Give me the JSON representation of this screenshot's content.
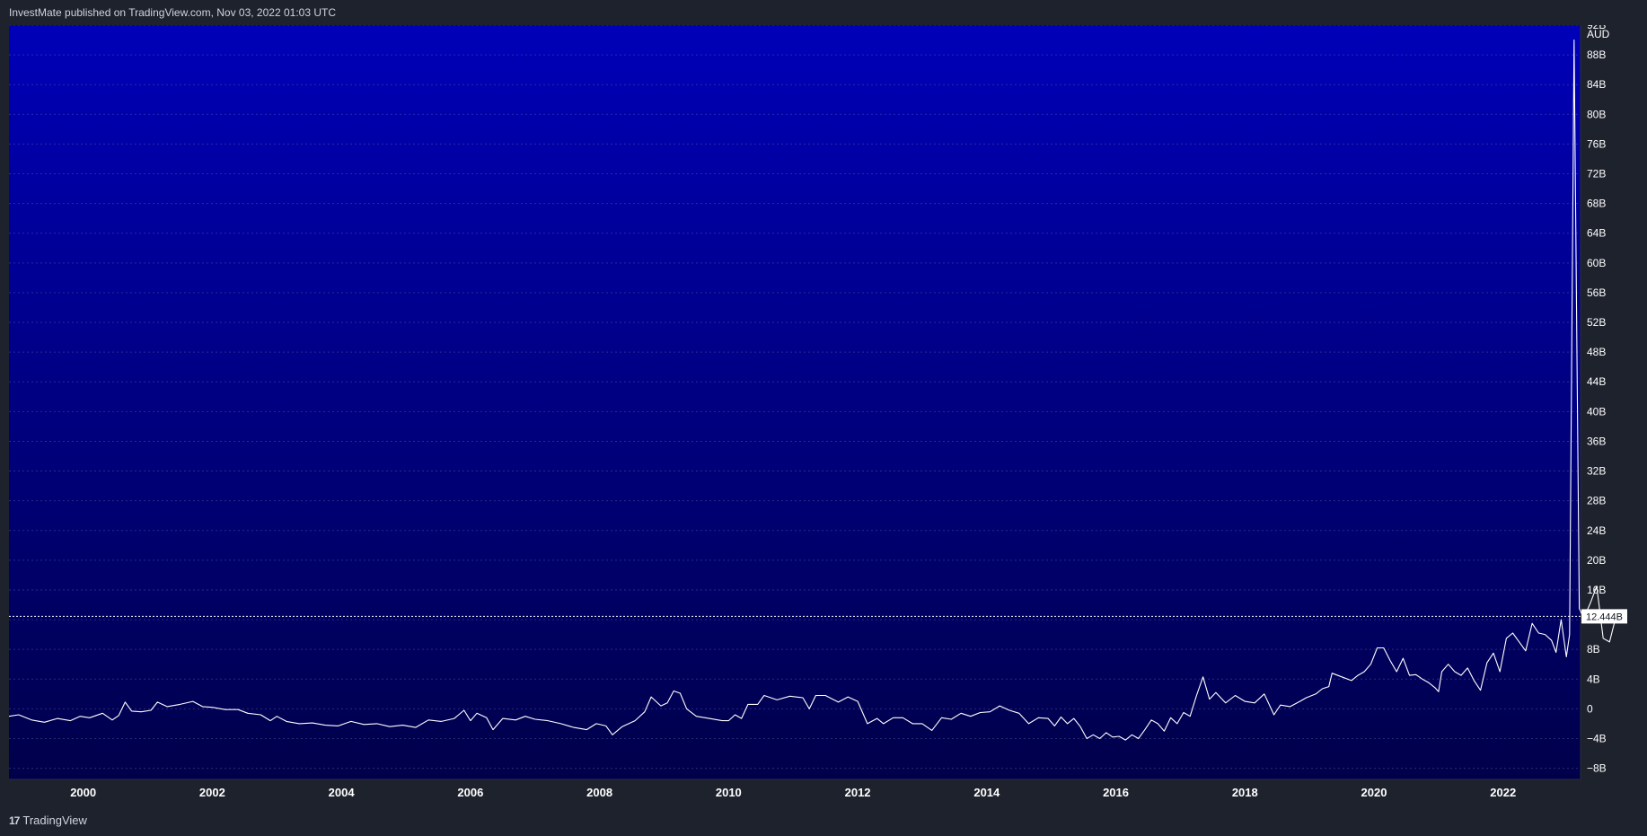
{
  "header": {
    "text": "InvestMate published on TradingView.com, Nov 03, 2022 01:03 UTC"
  },
  "footer": {
    "logo_glyph": "17",
    "brand": "TradingView"
  },
  "colors": {
    "bg_top": "#0000b8",
    "bg_bottom": "#00004a",
    "line": "#ffffff",
    "page_bg": "#1e222d"
  },
  "chart_data": {
    "type": "line",
    "currency_label": "AUD",
    "last_value_label": "12.444B",
    "last_value": 12.444,
    "y_unit": "B",
    "ylim": [
      -9.5,
      92
    ],
    "xlim": [
      1998.85,
      2023.2
    ],
    "grid": true,
    "y_ticks": [
      {
        "value": 92,
        "label": "92B"
      },
      {
        "value": 88,
        "label": "88B"
      },
      {
        "value": 84,
        "label": "84B"
      },
      {
        "value": 80,
        "label": "80B"
      },
      {
        "value": 76,
        "label": "76B"
      },
      {
        "value": 72,
        "label": "72B"
      },
      {
        "value": 68,
        "label": "68B"
      },
      {
        "value": 64,
        "label": "64B"
      },
      {
        "value": 60,
        "label": "60B"
      },
      {
        "value": 56,
        "label": "56B"
      },
      {
        "value": 52,
        "label": "52B"
      },
      {
        "value": 48,
        "label": "48B"
      },
      {
        "value": 44,
        "label": "44B"
      },
      {
        "value": 40,
        "label": "40B"
      },
      {
        "value": 36,
        "label": "36B"
      },
      {
        "value": 32,
        "label": "32B"
      },
      {
        "value": 28,
        "label": "28B"
      },
      {
        "value": 24,
        "label": "24B"
      },
      {
        "value": 20,
        "label": "20B"
      },
      {
        "value": 16,
        "label": "16B"
      },
      {
        "value": 12,
        "label": "12B"
      },
      {
        "value": 8,
        "label": "8B"
      },
      {
        "value": 4,
        "label": "4B"
      },
      {
        "value": 0,
        "label": "0"
      },
      {
        "value": -4,
        "label": "−4B"
      },
      {
        "value": -8,
        "label": "−8B"
      }
    ],
    "x_ticks": [
      {
        "value": 2000,
        "label": "2000"
      },
      {
        "value": 2002,
        "label": "2002"
      },
      {
        "value": 2004,
        "label": "2004"
      },
      {
        "value": 2006,
        "label": "2006"
      },
      {
        "value": 2008,
        "label": "2008"
      },
      {
        "value": 2010,
        "label": "2010"
      },
      {
        "value": 2012,
        "label": "2012"
      },
      {
        "value": 2014,
        "label": "2014"
      },
      {
        "value": 2016,
        "label": "2016"
      },
      {
        "value": 2018,
        "label": "2018"
      },
      {
        "value": 2020,
        "label": "2020"
      },
      {
        "value": 2022,
        "label": "2022"
      }
    ],
    "series": [
      {
        "points": [
          [
            1998.85,
            -1.0
          ],
          [
            1999.0,
            -0.8
          ],
          [
            1999.2,
            -1.5
          ],
          [
            1999.4,
            -1.8
          ],
          [
            1999.6,
            -1.3
          ],
          [
            1999.8,
            -1.6
          ],
          [
            1999.95,
            -1.0
          ],
          [
            2000.1,
            -1.2
          ],
          [
            2000.3,
            -0.6
          ],
          [
            2000.45,
            -1.5
          ],
          [
            2000.55,
            -0.9
          ],
          [
            2000.65,
            0.9
          ],
          [
            2000.75,
            -0.3
          ],
          [
            2000.9,
            -0.4
          ],
          [
            2001.05,
            -0.2
          ],
          [
            2001.15,
            0.9
          ],
          [
            2001.3,
            0.3
          ],
          [
            2001.5,
            0.6
          ],
          [
            2001.7,
            1.0
          ],
          [
            2001.85,
            0.3
          ],
          [
            2002.0,
            0.2
          ],
          [
            2002.2,
            -0.1
          ],
          [
            2002.4,
            -0.1
          ],
          [
            2002.55,
            -0.6
          ],
          [
            2002.75,
            -0.8
          ],
          [
            2002.9,
            -1.6
          ],
          [
            2003.0,
            -1.0
          ],
          [
            2003.15,
            -1.7
          ],
          [
            2003.35,
            -2.0
          ],
          [
            2003.55,
            -1.9
          ],
          [
            2003.75,
            -2.2
          ],
          [
            2003.95,
            -2.3
          ],
          [
            2004.15,
            -1.7
          ],
          [
            2004.35,
            -2.1
          ],
          [
            2004.55,
            -2.0
          ],
          [
            2004.75,
            -2.4
          ],
          [
            2004.95,
            -2.2
          ],
          [
            2005.15,
            -2.5
          ],
          [
            2005.35,
            -1.5
          ],
          [
            2005.55,
            -1.7
          ],
          [
            2005.75,
            -1.3
          ],
          [
            2005.9,
            -0.2
          ],
          [
            2006.0,
            -1.6
          ],
          [
            2006.1,
            -0.6
          ],
          [
            2006.25,
            -1.2
          ],
          [
            2006.35,
            -2.8
          ],
          [
            2006.5,
            -1.3
          ],
          [
            2006.7,
            -1.5
          ],
          [
            2006.85,
            -1.0
          ],
          [
            2007.0,
            -1.4
          ],
          [
            2007.2,
            -1.6
          ],
          [
            2007.4,
            -2.0
          ],
          [
            2007.6,
            -2.5
          ],
          [
            2007.8,
            -2.8
          ],
          [
            2007.95,
            -2.0
          ],
          [
            2008.1,
            -2.3
          ],
          [
            2008.2,
            -3.5
          ],
          [
            2008.35,
            -2.4
          ],
          [
            2008.55,
            -1.6
          ],
          [
            2008.7,
            -0.4
          ],
          [
            2008.8,
            1.6
          ],
          [
            2008.95,
            0.4
          ],
          [
            2009.05,
            0.8
          ],
          [
            2009.15,
            2.4
          ],
          [
            2009.25,
            2.1
          ],
          [
            2009.35,
            0.0
          ],
          [
            2009.5,
            -1.0
          ],
          [
            2009.7,
            -1.3
          ],
          [
            2009.9,
            -1.6
          ],
          [
            2010.0,
            -1.6
          ],
          [
            2010.1,
            -0.8
          ],
          [
            2010.2,
            -1.3
          ],
          [
            2010.3,
            0.6
          ],
          [
            2010.45,
            0.6
          ],
          [
            2010.55,
            1.8
          ],
          [
            2010.75,
            1.2
          ],
          [
            2010.95,
            1.7
          ],
          [
            2011.15,
            1.5
          ],
          [
            2011.25,
            0.0
          ],
          [
            2011.35,
            1.8
          ],
          [
            2011.5,
            1.8
          ],
          [
            2011.7,
            0.9
          ],
          [
            2011.85,
            1.6
          ],
          [
            2012.0,
            1.0
          ],
          [
            2012.15,
            -2.0
          ],
          [
            2012.3,
            -1.3
          ],
          [
            2012.4,
            -2.0
          ],
          [
            2012.55,
            -1.2
          ],
          [
            2012.7,
            -1.2
          ],
          [
            2012.85,
            -2.0
          ],
          [
            2013.0,
            -2.0
          ],
          [
            2013.15,
            -2.9
          ],
          [
            2013.3,
            -1.2
          ],
          [
            2013.45,
            -1.4
          ],
          [
            2013.6,
            -0.6
          ],
          [
            2013.75,
            -1.0
          ],
          [
            2013.9,
            -0.5
          ],
          [
            2014.05,
            -0.4
          ],
          [
            2014.2,
            0.4
          ],
          [
            2014.35,
            -0.2
          ],
          [
            2014.5,
            -0.6
          ],
          [
            2014.65,
            -2.0
          ],
          [
            2014.8,
            -1.2
          ],
          [
            2014.95,
            -1.3
          ],
          [
            2015.05,
            -2.3
          ],
          [
            2015.15,
            -1.1
          ],
          [
            2015.25,
            -2.0
          ],
          [
            2015.35,
            -1.3
          ],
          [
            2015.45,
            -2.4
          ],
          [
            2015.55,
            -4.0
          ],
          [
            2015.65,
            -3.5
          ],
          [
            2015.75,
            -4.0
          ],
          [
            2015.85,
            -3.2
          ],
          [
            2015.95,
            -3.8
          ],
          [
            2016.05,
            -3.7
          ],
          [
            2016.15,
            -4.2
          ],
          [
            2016.25,
            -3.5
          ],
          [
            2016.35,
            -4.0
          ],
          [
            2016.45,
            -2.8
          ],
          [
            2016.55,
            -1.5
          ],
          [
            2016.65,
            -2.0
          ],
          [
            2016.75,
            -3.0
          ],
          [
            2016.85,
            -1.2
          ],
          [
            2016.95,
            -2.0
          ],
          [
            2017.05,
            -0.5
          ],
          [
            2017.15,
            -1.0
          ],
          [
            2017.25,
            1.8
          ],
          [
            2017.35,
            4.3
          ],
          [
            2017.45,
            1.3
          ],
          [
            2017.55,
            2.2
          ],
          [
            2017.7,
            0.8
          ],
          [
            2017.85,
            1.8
          ],
          [
            2018.0,
            1.0
          ],
          [
            2018.15,
            0.8
          ],
          [
            2018.3,
            2.0
          ],
          [
            2018.45,
            -0.8
          ],
          [
            2018.55,
            0.5
          ],
          [
            2018.7,
            0.3
          ],
          [
            2018.85,
            1.0
          ],
          [
            2018.95,
            1.5
          ],
          [
            2019.1,
            2.0
          ],
          [
            2019.2,
            2.7
          ],
          [
            2019.3,
            3.0
          ],
          [
            2019.35,
            4.8
          ],
          [
            2019.5,
            4.3
          ],
          [
            2019.65,
            3.8
          ],
          [
            2019.75,
            4.5
          ],
          [
            2019.85,
            5.0
          ],
          [
            2019.95,
            6.0
          ],
          [
            2020.05,
            8.2
          ],
          [
            2020.15,
            8.2
          ],
          [
            2020.25,
            6.5
          ],
          [
            2020.35,
            5.0
          ],
          [
            2020.45,
            6.8
          ],
          [
            2020.55,
            4.5
          ],
          [
            2020.65,
            4.6
          ],
          [
            2020.75,
            4.0
          ],
          [
            2020.85,
            3.5
          ],
          [
            2020.95,
            2.8
          ],
          [
            2021.0,
            2.3
          ],
          [
            2021.05,
            5.0
          ],
          [
            2021.15,
            6.0
          ],
          [
            2021.25,
            5.0
          ],
          [
            2021.35,
            4.5
          ],
          [
            2021.45,
            5.5
          ],
          [
            2021.55,
            3.8
          ],
          [
            2021.65,
            2.5
          ],
          [
            2021.75,
            6.2
          ],
          [
            2021.85,
            7.5
          ],
          [
            2021.95,
            5.0
          ],
          [
            2022.05,
            9.5
          ],
          [
            2022.15,
            10.2
          ],
          [
            2022.25,
            9.0
          ],
          [
            2022.35,
            7.8
          ],
          [
            2022.45,
            11.5
          ],
          [
            2022.55,
            10.2
          ],
          [
            2022.65,
            10.0
          ],
          [
            2022.75,
            9.2
          ],
          [
            2022.82,
            7.6
          ],
          [
            2022.9,
            12.0
          ],
          [
            2022.98,
            7.0
          ],
          [
            2023.03,
            10.0
          ],
          [
            2023.1,
            90.0
          ],
          [
            2023.18,
            13.5
          ],
          [
            2023.25,
            12.2
          ],
          [
            2023.35,
            14.2
          ],
          [
            2023.45,
            16.5
          ],
          [
            2023.55,
            9.5
          ],
          [
            2023.65,
            9.0
          ],
          [
            2023.75,
            12.444
          ]
        ]
      }
    ]
  }
}
